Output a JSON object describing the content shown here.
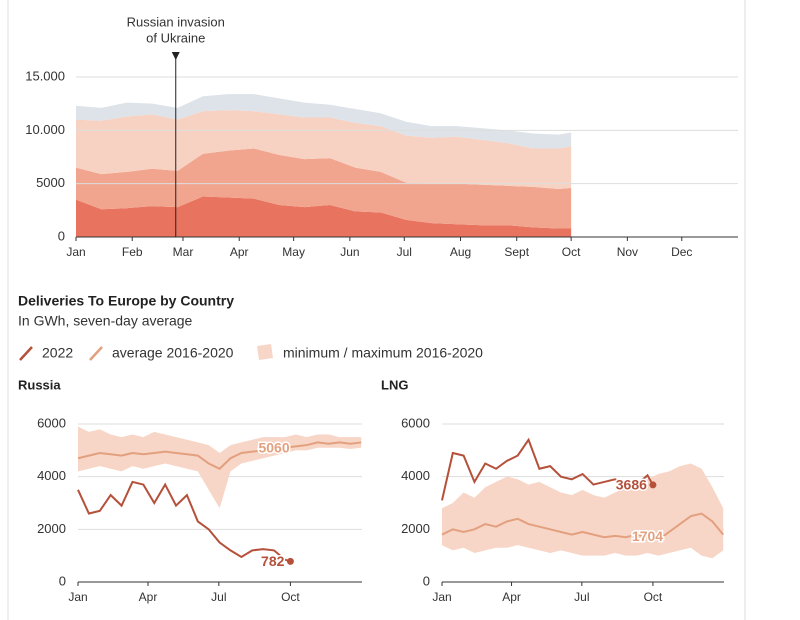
{
  "section": {
    "title": "Deliveries To Europe by Country",
    "subtitle": "In GWh, seven-day average"
  },
  "chart_data": [
    {
      "type": "stacked-area",
      "annotation": {
        "text": [
          "Russian invasion",
          "of Ukraine"
        ],
        "x": 55
      },
      "xlim": [
        0,
        365
      ],
      "xticks": [
        {
          "value": 0,
          "label": "Jan"
        },
        {
          "value": 31,
          "label": "Feb"
        },
        {
          "value": 59,
          "label": "Mar"
        },
        {
          "value": 90,
          "label": "Apr"
        },
        {
          "value": 120,
          "label": "May"
        },
        {
          "value": 151,
          "label": "Jun"
        },
        {
          "value": 181,
          "label": "Jul"
        },
        {
          "value": 212,
          "label": "Aug"
        },
        {
          "value": 243,
          "label": "Sept"
        },
        {
          "value": 273,
          "label": "Oct"
        },
        {
          "value": 304,
          "label": "Nov"
        },
        {
          "value": 334,
          "label": "Dec"
        }
      ],
      "ylim": [
        0,
        15000
      ],
      "yticks": [
        0,
        5000,
        {
          "value": 10000,
          "label": "10.000"
        },
        {
          "value": 15000,
          "label": "15.000"
        }
      ],
      "grid": true,
      "x": [
        0,
        14,
        28,
        42,
        56,
        70,
        84,
        98,
        112,
        126,
        140,
        154,
        168,
        182,
        196,
        210,
        224,
        238,
        252,
        266,
        273
      ],
      "series": [
        {
          "color": "#e8735f",
          "values": [
            3500,
            2600,
            2700,
            2900,
            2800,
            3800,
            3700,
            3600,
            3000,
            2800,
            3000,
            2400,
            2300,
            1600,
            1300,
            1200,
            1100,
            1100,
            900,
            800,
            800
          ]
        },
        {
          "color": "#f2a58e",
          "values": [
            3000,
            3300,
            3400,
            3500,
            3400,
            4000,
            4400,
            4700,
            4700,
            4500,
            4400,
            4100,
            3800,
            3500,
            3700,
            3800,
            3800,
            3700,
            3800,
            3700,
            3800
          ]
        },
        {
          "color": "#f7d2c3",
          "values": [
            4500,
            5000,
            5200,
            5100,
            4800,
            4000,
            3800,
            3500,
            3800,
            3900,
            3800,
            4200,
            4300,
            4400,
            4300,
            4400,
            4200,
            4000,
            3600,
            3800,
            3900
          ]
        },
        {
          "color": "#dde3e8",
          "values": [
            1300,
            1200,
            1300,
            1000,
            1100,
            1400,
            1500,
            1600,
            1500,
            1400,
            1200,
            1300,
            1200,
            1300,
            1100,
            1000,
            1100,
            1200,
            1400,
            1300,
            1300
          ]
        }
      ]
    },
    {
      "type": "line",
      "title": "Russia",
      "xlim": [
        0,
        365
      ],
      "xticks": [
        {
          "value": 0,
          "label": "Jan"
        },
        {
          "value": 90,
          "label": "Apr"
        },
        {
          "value": 181,
          "label": "Jul"
        },
        {
          "value": 273,
          "label": "Oct"
        }
      ],
      "ylim": [
        0,
        6000
      ],
      "yticks": [
        0,
        2000,
        4000,
        6000
      ],
      "grid": true,
      "series": [
        {
          "name": "minimum / maximum 2016-2020",
          "kind": "band",
          "color": "#f7d6c7",
          "x": [
            0,
            14,
            28,
            42,
            56,
            70,
            84,
            98,
            112,
            126,
            140,
            154,
            168,
            182,
            196,
            210,
            224,
            238,
            252,
            266,
            280,
            294,
            308,
            322,
            336,
            350,
            364
          ],
          "low": [
            4200,
            4300,
            4400,
            4300,
            4200,
            4400,
            4300,
            4400,
            4500,
            4400,
            4300,
            4200,
            3500,
            2800,
            4200,
            4500,
            4600,
            4700,
            4800,
            4900,
            5000,
            5000,
            5100,
            5100,
            5100,
            5050,
            5100
          ],
          "high": [
            5900,
            5700,
            5800,
            5600,
            5500,
            5600,
            5500,
            5700,
            5600,
            5500,
            5400,
            5300,
            5200,
            4900,
            5200,
            5300,
            5400,
            5500,
            5500,
            5500,
            5600,
            5500,
            5600,
            5600,
            5500,
            5500,
            5500
          ]
        },
        {
          "name": "average 2016-2020",
          "kind": "line",
          "color": "#e3a07f",
          "label_index": 18,
          "x": [
            0,
            14,
            28,
            42,
            56,
            70,
            84,
            98,
            112,
            126,
            140,
            154,
            168,
            182,
            196,
            210,
            224,
            238,
            252,
            266,
            280,
            294,
            308,
            322,
            336,
            350,
            364
          ],
          "values": [
            4700,
            4800,
            4900,
            4850,
            4800,
            4900,
            4850,
            4900,
            4950,
            4900,
            4850,
            4800,
            4500,
            4300,
            4700,
            4900,
            4950,
            5000,
            5060,
            5100,
            5150,
            5200,
            5300,
            5250,
            5300,
            5250,
            5300
          ]
        },
        {
          "name": "2022",
          "kind": "line",
          "color": "#b5513a",
          "label_index": 20,
          "end_dot": true,
          "x": [
            0,
            14,
            28,
            42,
            56,
            70,
            84,
            98,
            112,
            126,
            140,
            154,
            168,
            182,
            196,
            210,
            224,
            238,
            252,
            266,
            273
          ],
          "values": [
            3500,
            2600,
            2700,
            3300,
            2900,
            3800,
            3700,
            3000,
            3700,
            2900,
            3300,
            2300,
            2000,
            1500,
            1200,
            950,
            1200,
            1250,
            1200,
            850,
            782
          ]
        }
      ]
    },
    {
      "type": "line",
      "title": "LNG",
      "xlim": [
        0,
        365
      ],
      "xticks": [
        {
          "value": 0,
          "label": "Jan"
        },
        {
          "value": 90,
          "label": "Apr"
        },
        {
          "value": 181,
          "label": "Jul"
        },
        {
          "value": 273,
          "label": "Oct"
        }
      ],
      "ylim": [
        0,
        6000
      ],
      "yticks": [
        0,
        2000,
        4000,
        6000
      ],
      "grid": true,
      "series": [
        {
          "kind": "band",
          "color": "#f7d6c7",
          "x": [
            0,
            14,
            28,
            42,
            56,
            70,
            84,
            98,
            112,
            126,
            140,
            154,
            168,
            182,
            196,
            210,
            224,
            238,
            252,
            266,
            280,
            294,
            308,
            322,
            336,
            350,
            364
          ],
          "low": [
            1400,
            1200,
            1300,
            1100,
            1200,
            1300,
            1300,
            1400,
            1300,
            1200,
            1100,
            1200,
            1100,
            1000,
            1000,
            1000,
            1100,
            1000,
            1000,
            1100,
            1000,
            1100,
            1200,
            1300,
            1000,
            900,
            1200
          ],
          "high": [
            2800,
            3000,
            3400,
            3200,
            3600,
            3800,
            4000,
            3900,
            3700,
            3800,
            3600,
            3400,
            3300,
            3500,
            3300,
            3200,
            3400,
            3600,
            3800,
            3900,
            4100,
            4200,
            4400,
            4500,
            4300,
            3600,
            2800
          ]
        },
        {
          "kind": "line",
          "color": "#e3a07f",
          "label_index": 19,
          "x": [
            0,
            14,
            28,
            42,
            56,
            70,
            84,
            98,
            112,
            126,
            140,
            154,
            168,
            182,
            196,
            210,
            224,
            238,
            252,
            266,
            280,
            294,
            308,
            322,
            336,
            350,
            364
          ],
          "values": [
            1800,
            2000,
            1900,
            2000,
            2200,
            2100,
            2300,
            2400,
            2200,
            2100,
            2000,
            1900,
            1800,
            1900,
            1800,
            1700,
            1750,
            1700,
            1800,
            1704,
            1600,
            1900,
            2200,
            2500,
            2600,
            2300,
            1800
          ]
        },
        {
          "kind": "line",
          "color": "#b5513a",
          "label_index": 20,
          "end_dot": true,
          "x": [
            0,
            14,
            28,
            42,
            56,
            70,
            84,
            98,
            112,
            126,
            140,
            154,
            168,
            182,
            196,
            210,
            224,
            238,
            252,
            266,
            273
          ],
          "values": [
            3100,
            4900,
            4800,
            3800,
            4500,
            4300,
            4600,
            4800,
            5400,
            4300,
            4400,
            4000,
            3900,
            4100,
            3700,
            3800,
            3900,
            3700,
            3700,
            4050,
            3686
          ]
        }
      ]
    }
  ]
}
